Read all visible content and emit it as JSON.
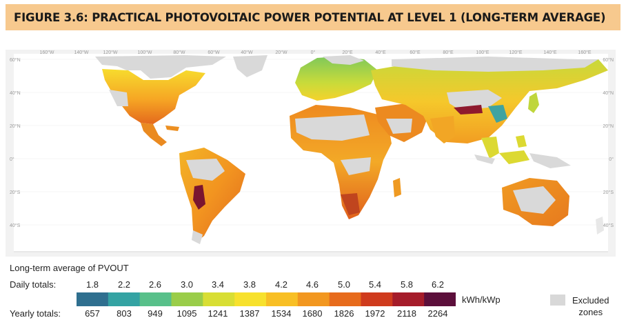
{
  "title": "FIGURE 3.6: PRACTICAL PHOTOVOLTAIC POWER POTENTIAL AT LEVEL 1 (LONG-TERM AVERAGE)",
  "map": {
    "lon_labels": [
      "160°W",
      "140°W",
      "120°W",
      "100°W",
      "80°W",
      "60°W",
      "40°W",
      "20°W",
      "0°",
      "20°E",
      "40°E",
      "60°E",
      "80°E",
      "100°E",
      "120°E",
      "140°E",
      "160°E"
    ],
    "lat_labels": [
      "60°N",
      "40°N",
      "20°N",
      "0°",
      "20°S",
      "40°S"
    ],
    "colors": {
      "ocean": "#ffffff",
      "excluded": "#d9d9d9",
      "frame": "#f4f4f4"
    }
  },
  "legend": {
    "title": "Long-term average of PVOUT",
    "daily_label": "Daily totals:",
    "yearly_label": "Yearly totals:",
    "daily_values": [
      "1.8",
      "2.2",
      "2.6",
      "3.0",
      "3.4",
      "3.8",
      "4.2",
      "4.6",
      "5.0",
      "5.4",
      "5.8",
      "6.2"
    ],
    "yearly_values": [
      "657",
      "803",
      "949",
      "1095",
      "1241",
      "1387",
      "1534",
      "1680",
      "1826",
      "1972",
      "2118",
      "2264"
    ],
    "unit": "kWh/kWp",
    "excluded_label_1": "Excluded",
    "excluded_label_2": "zones",
    "ramp_colors": [
      "#2f6f8f",
      "#34a3a3",
      "#58c08a",
      "#9acd49",
      "#d8de34",
      "#f7e12d",
      "#f8bf25",
      "#f29720",
      "#e76b1c",
      "#cf3b1d",
      "#a51c2a",
      "#5c0f3b"
    ]
  }
}
